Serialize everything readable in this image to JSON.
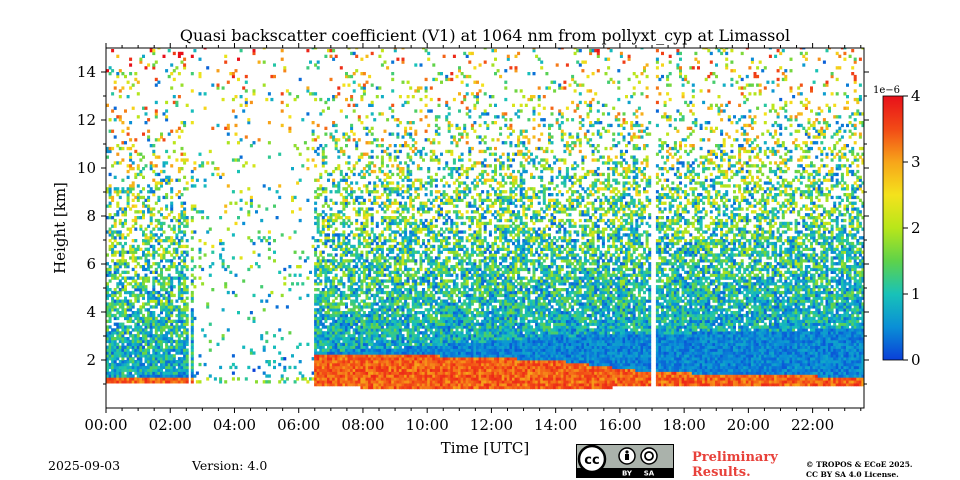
{
  "chart_data": {
    "type": "heatmap",
    "title": "Quasi backscatter coefficient (V1) at 1064 nm from pollyxt_cyp at Limassol",
    "xlabel": "Time [UTC]",
    "ylabel": "Height [km]",
    "x_range_hours": [
      0,
      23.6
    ],
    "xticks": [
      0,
      2,
      4,
      6,
      8,
      10,
      12,
      14,
      16,
      18,
      20,
      22
    ],
    "xtick_labels": [
      "00:00",
      "02:00",
      "04:00",
      "06:00",
      "08:00",
      "10:00",
      "12:00",
      "14:00",
      "16:00",
      "18:00",
      "20:00",
      "22:00"
    ],
    "ylim": [
      0,
      15
    ],
    "yticks": [
      2,
      4,
      6,
      8,
      10,
      12,
      14
    ],
    "ytick_labels": [
      "2",
      "4",
      "6",
      "8",
      "10",
      "12",
      "14"
    ],
    "colorbar": {
      "range": [
        0,
        4
      ],
      "ticks": [
        0,
        1,
        2,
        3,
        4
      ],
      "tick_labels": [
        "0",
        "1",
        "2",
        "3",
        "4"
      ],
      "scale_label": "1e−6",
      "colors": [
        "#0a3fd8",
        "#0a8fd6",
        "#18c2b8",
        "#5ed24a",
        "#b8e61a",
        "#f4e21c",
        "#f7a51a",
        "#f24a16",
        "#e8101a"
      ]
    },
    "data_gaps_hours": [
      [
        2.55,
        2.65
      ],
      [
        16.95,
        17.1
      ]
    ],
    "low_signal_period_hours": [
      2.7,
      6.5
    ],
    "boundary_layer_top_km": [
      {
        "t": 0.0,
        "h": 1.3
      },
      {
        "t": 2.5,
        "h": 1.4
      },
      {
        "t": 6.5,
        "h": 2.3
      },
      {
        "t": 10.0,
        "h": 2.6
      },
      {
        "t": 14.0,
        "h": 3.0
      },
      {
        "t": 17.0,
        "h": 3.1
      },
      {
        "t": 20.0,
        "h": 3.2
      },
      {
        "t": 23.6,
        "h": 3.3
      }
    ],
    "aerosol_layer_km": [
      {
        "t": 6.5,
        "bottom": 0.9,
        "top": 2.2
      },
      {
        "t": 10.0,
        "bottom": 0.8,
        "top": 2.2
      },
      {
        "t": 14.0,
        "bottom": 0.8,
        "top": 2.0
      },
      {
        "t": 17.0,
        "bottom": 0.9,
        "top": 1.5
      },
      {
        "t": 20.0,
        "bottom": 0.9,
        "top": 1.4
      },
      {
        "t": 23.6,
        "bottom": 0.9,
        "top": 1.3
      }
    ]
  },
  "footer": {
    "date": "2025-09-03",
    "version": "Version: 4.0",
    "preliminary_line1": "Preliminary",
    "preliminary_line2": "Results.",
    "copyright_line1": "© TROPOS & ECoE 2025.",
    "copyright_line2": "CC BY SA 4.0 License.",
    "license_badge": {
      "by": "BY",
      "sa": "SA"
    }
  }
}
